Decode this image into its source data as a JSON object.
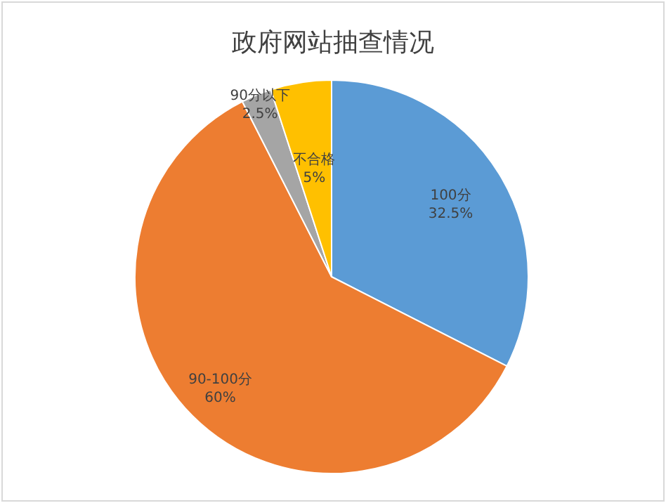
{
  "chart_data": {
    "type": "pie",
    "title": "政府网站抽查情况",
    "categories": [
      "100分",
      "90-100分",
      "90分以下",
      "不合格"
    ],
    "values": [
      32.5,
      60,
      2.5,
      5
    ],
    "colors": [
      "#5b9bd5",
      "#ed7d31",
      "#a5a5a5",
      "#ffc000"
    ],
    "value_labels": [
      "32.5%",
      "60%",
      "2.5%",
      "5%"
    ],
    "legend": false
  }
}
